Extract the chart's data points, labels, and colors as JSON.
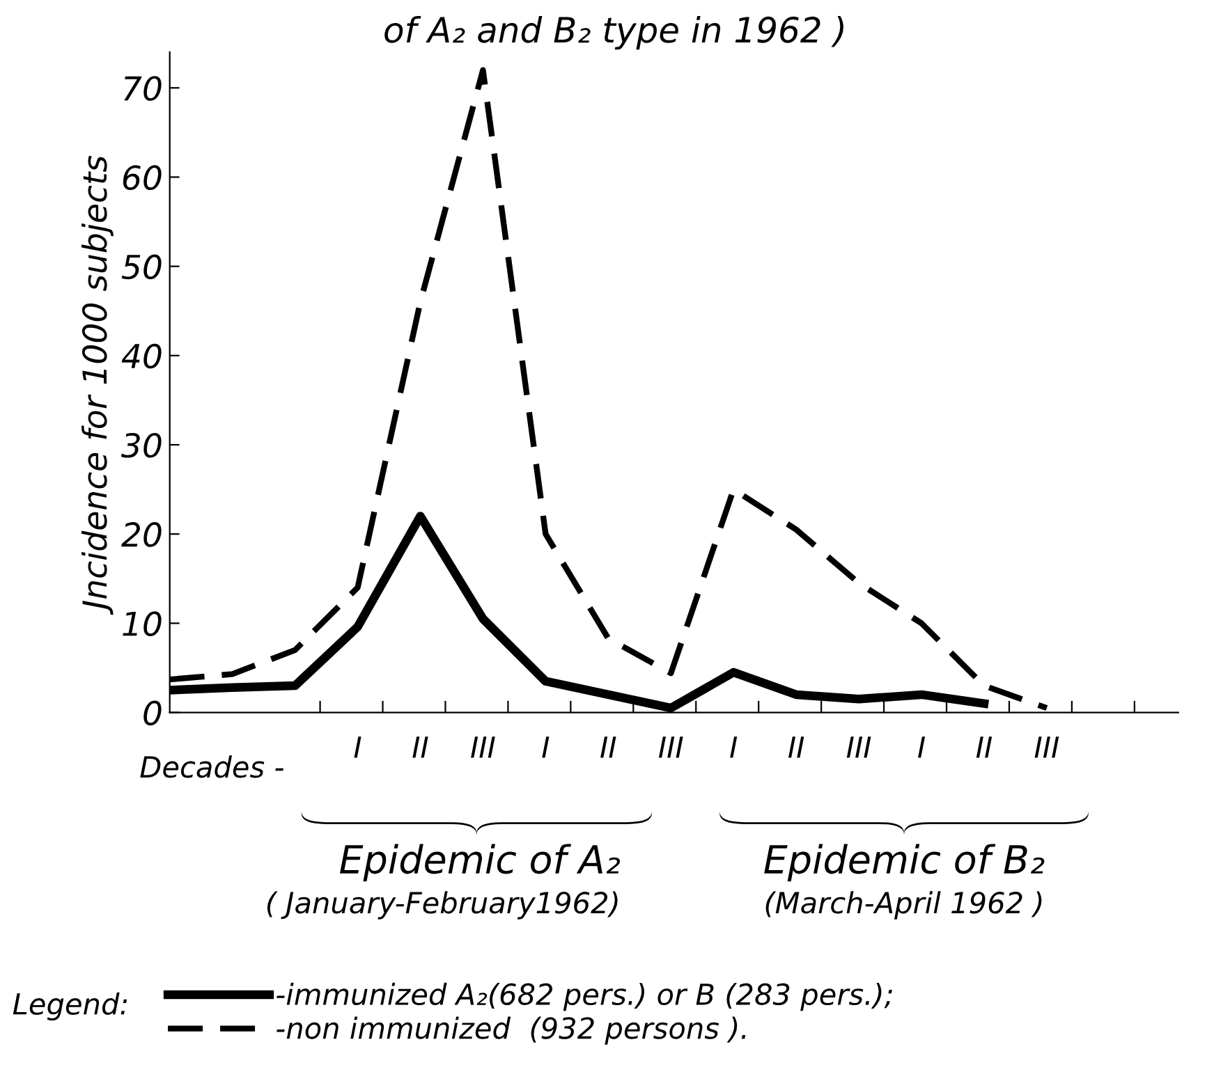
{
  "chart_data": {
    "type": "line",
    "title": "of A₂ and B₂ type in 1962 )",
    "ylabel": "Jncidence for 1000 subjects",
    "xlabel": "Decades -",
    "ylim": [
      0,
      74
    ],
    "yticks": [
      0,
      10,
      20,
      30,
      40,
      50,
      60,
      70
    ],
    "categories": [
      null,
      null,
      null,
      "I",
      "II",
      "III",
      "I",
      "II",
      "III",
      "I",
      "II",
      "III",
      "I",
      "II",
      "III"
    ],
    "series": [
      {
        "name": "-immunized A₂(682 pers.) or B (283 pers.);",
        "color": "#000000",
        "line_style": "solid",
        "values": [
          2.5,
          2.8,
          3,
          9.6,
          22,
          10.5,
          3.5,
          2,
          0.5,
          4.5,
          2,
          1.5,
          2,
          1,
          null
        ]
      },
      {
        "name": "-non immunized  (932 persons ).",
        "color": "#000000",
        "line_style": "dashed",
        "values": [
          3.7,
          4.3,
          7,
          14,
          46,
          72,
          20,
          8.3,
          4.4,
          25,
          20.5,
          14.5,
          10,
          3,
          0.5
        ]
      }
    ],
    "legend": "bottom",
    "legend_title": "Legend:",
    "annotations": [
      "Epidemic of A₂",
      "( January-February1962)",
      "Epidemic of B₂",
      "(March-April 1962 )"
    ]
  }
}
